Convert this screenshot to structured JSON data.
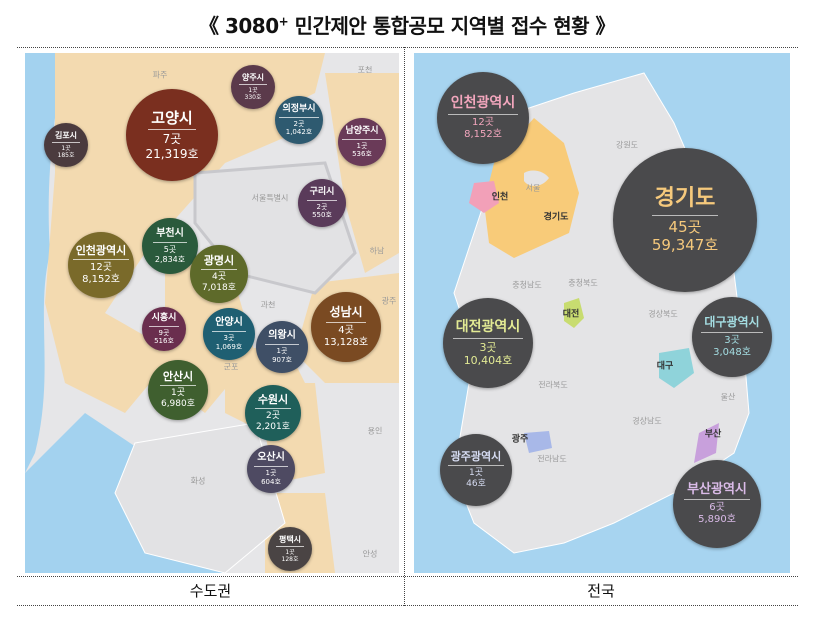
{
  "title": {
    "prefix": "《 ",
    "main": "3080",
    "sup": "+",
    "rest": " 민간제안 통합공모 지역별 접수 현황 》"
  },
  "left": {
    "caption": "수도권",
    "places": [
      "파주",
      "포천",
      "서울특별시",
      "하남",
      "과천",
      "광주",
      "군포",
      "용인",
      "화성",
      "안성"
    ],
    "bubbles": [
      {
        "name": "양주시",
        "count": "1곳",
        "units": "330호",
        "color": "#5b3a4b"
      },
      {
        "name": "고양시",
        "count": "7곳",
        "units": "21,319호",
        "color": "#7a2f1f"
      },
      {
        "name": "김포시",
        "count": "1곳",
        "units": "185호",
        "color": "#4b3b3e"
      },
      {
        "name": "의정부시",
        "count": "2곳",
        "units": "1,042호",
        "color": "#2e5a70"
      },
      {
        "name": "남양주시",
        "count": "1곳",
        "units": "536호",
        "color": "#6a3a58"
      },
      {
        "name": "구리시",
        "count": "2곳",
        "units": "550호",
        "color": "#5a3b5a"
      },
      {
        "name": "부천시",
        "count": "5곳",
        "units": "2,834호",
        "color": "#2a5a3c"
      },
      {
        "name": "인천광역시",
        "count": "12곳",
        "units": "8,152호",
        "color": "#7a6a2a"
      },
      {
        "name": "광명시",
        "count": "4곳",
        "units": "7,018호",
        "color": "#5e6a2a"
      },
      {
        "name": "성남시",
        "count": "4곳",
        "units": "13,128호",
        "color": "#7a4a22"
      },
      {
        "name": "시흥시",
        "count": "9곳",
        "units": "516호",
        "color": "#6a2e4e"
      },
      {
        "name": "안양시",
        "count": "3곳",
        "units": "1,069호",
        "color": "#1f5f72"
      },
      {
        "name": "의왕시",
        "count": "1곳",
        "units": "907호",
        "color": "#3f4f66"
      },
      {
        "name": "안산시",
        "count": "1곳",
        "units": "6,980호",
        "color": "#3f5f2f"
      },
      {
        "name": "수원시",
        "count": "2곳",
        "units": "2,201호",
        "color": "#1f5f5a"
      },
      {
        "name": "오산시",
        "count": "1곳",
        "units": "604호",
        "color": "#4e4a62"
      },
      {
        "name": "평택시",
        "count": "1곳",
        "units": "128호",
        "color": "#4a4444"
      }
    ]
  },
  "right": {
    "caption": "전국",
    "places": [
      "강원도",
      "서울",
      "충청남도",
      "충청북도",
      "경상북도",
      "전라북도",
      "울산",
      "경상남도",
      "전라남도"
    ],
    "region_labels": [
      "인천",
      "경기도",
      "대전",
      "대구",
      "광주",
      "부산"
    ],
    "bubbles": [
      {
        "name": "인천광역시",
        "count": "12곳",
        "units": "8,152호",
        "accent": "#f2a6bd"
      },
      {
        "name": "경기도",
        "count": "45곳",
        "units": "59,347호",
        "accent": "#f6c97c"
      },
      {
        "name": "대전광역시",
        "count": "3곳",
        "units": "10,404호",
        "accent": "#e2ea94"
      },
      {
        "name": "대구광역시",
        "count": "3곳",
        "units": "3,048호",
        "accent": "#a4dde2"
      },
      {
        "name": "광주광역시",
        "count": "1곳",
        "units": "46호",
        "accent": "#d6dcf2"
      },
      {
        "name": "부산광역시",
        "count": "6곳",
        "units": "5,890호",
        "accent": "#dabbe8"
      }
    ]
  }
}
